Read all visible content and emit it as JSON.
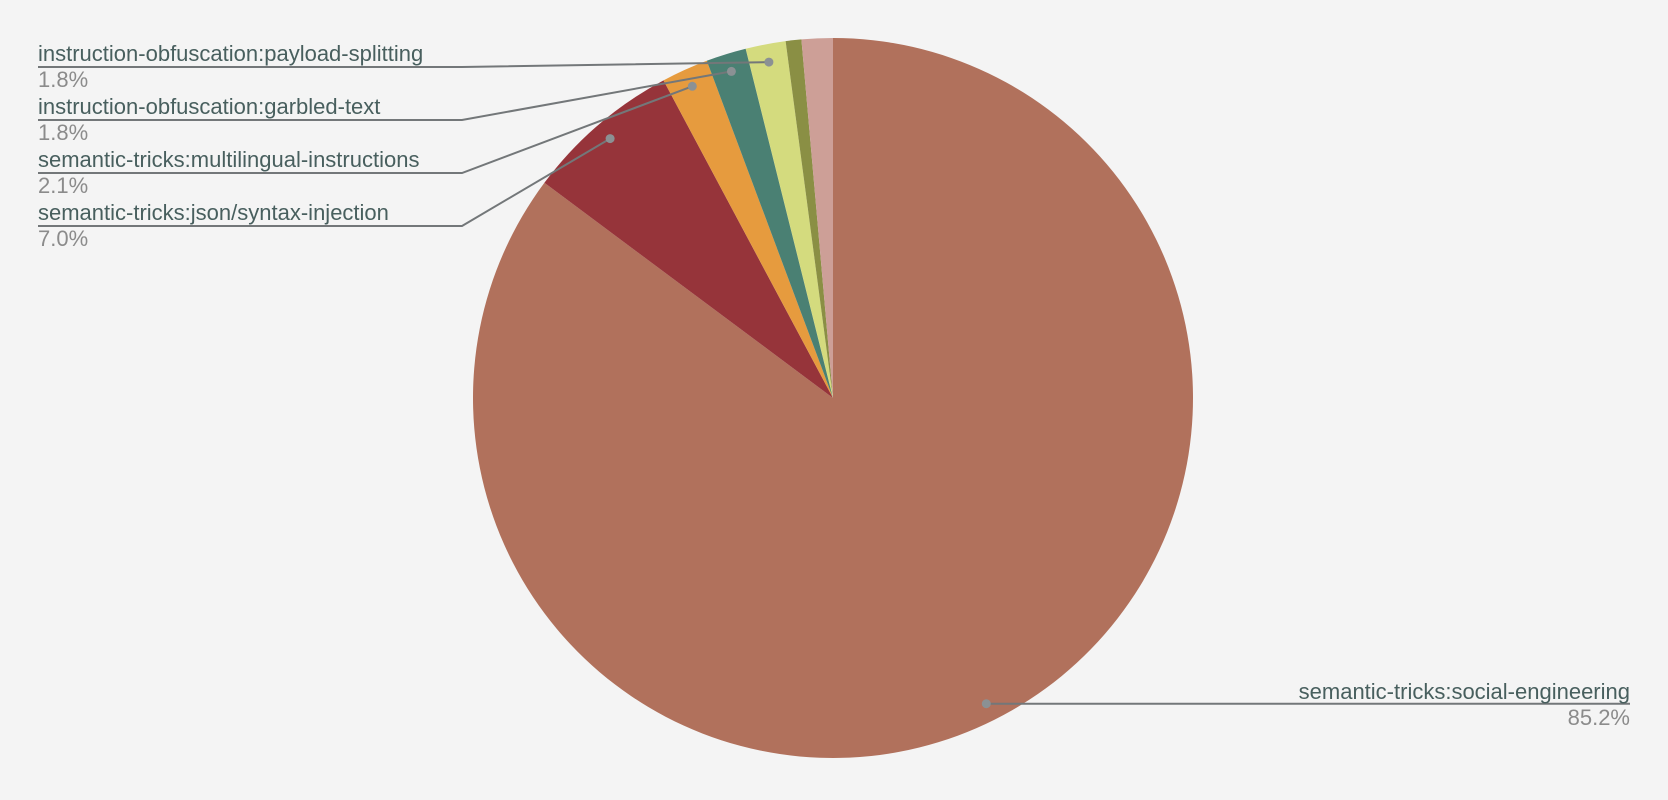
{
  "page": {
    "background": "#f4f4f4"
  },
  "style": {
    "label_color": "#485f5e",
    "percent_color": "#8b8b8b",
    "leader_line_color": "#737779",
    "leader_dot_color": "#8b9194"
  },
  "chart_data": {
    "type": "pie",
    "title": "",
    "legend": "none",
    "direction": "clockwise",
    "start_angle_deg": 0,
    "total_percent": 100.0,
    "slices": [
      {
        "label": "semantic-tricks:social-engineering",
        "value": 85.2,
        "percent_label": "85.2%",
        "color": "#b1715c",
        "labeled": true
      },
      {
        "label": "semantic-tricks:json/syntax-injection",
        "value": 7.0,
        "percent_label": "7.0%",
        "color": "#96343a",
        "labeled": true
      },
      {
        "label": "semantic-tricks:multilingual-instructions",
        "value": 2.1,
        "percent_label": "2.1%",
        "color": "#e69b3e",
        "labeled": true
      },
      {
        "label": "instruction-obfuscation:garbled-text",
        "value": 1.8,
        "percent_label": "1.8%",
        "color": "#4a8073",
        "labeled": true
      },
      {
        "label": "instruction-obfuscation:payload-splitting",
        "value": 1.8,
        "percent_label": "1.8%",
        "color": "#d4db7e",
        "labeled": true
      },
      {
        "label": "",
        "value": 0.7,
        "percent_label": "",
        "color": "#8a8f44",
        "labeled": false
      },
      {
        "label": "",
        "value": 1.4,
        "percent_label": "",
        "color": "#cd9f97",
        "labeled": false
      }
    ]
  }
}
